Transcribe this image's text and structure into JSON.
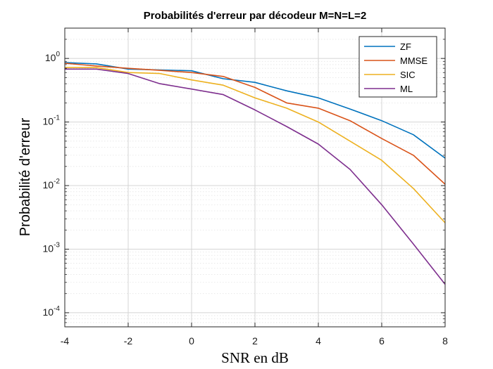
{
  "chart_data": {
    "type": "line",
    "title": "Probabilités d'erreur par décodeur M=N=L=2",
    "xlabel": "SNR en dB",
    "ylabel": "Probabilité d'erreur",
    "xlim": [
      -4,
      8
    ],
    "ylim": [
      6e-05,
      3
    ],
    "yscale": "log",
    "grid": true,
    "legend_position": "top-right",
    "x": [
      -4,
      -3,
      -2,
      -1,
      0,
      1,
      2,
      3,
      4,
      5,
      6,
      7,
      8
    ],
    "x_ticks": [
      {
        "value": -4,
        "label": "-4"
      },
      {
        "value": -2,
        "label": "-2"
      },
      {
        "value": 0,
        "label": "0"
      },
      {
        "value": 2,
        "label": "2"
      },
      {
        "value": 4,
        "label": "4"
      },
      {
        "value": 6,
        "label": "6"
      },
      {
        "value": 8,
        "label": "8"
      }
    ],
    "y_ticks": [
      {
        "value": 1,
        "base": "10",
        "exp": "0"
      },
      {
        "value": 0.1,
        "base": "10",
        "exp": "-1"
      },
      {
        "value": 0.01,
        "base": "10",
        "exp": "-2"
      },
      {
        "value": 0.001,
        "base": "10",
        "exp": "-3"
      },
      {
        "value": 0.0001,
        "base": "10",
        "exp": "-4"
      }
    ],
    "series": [
      {
        "name": "ZF",
        "color": "#0072BD",
        "values": [
          0.86,
          0.82,
          0.68,
          0.66,
          0.64,
          0.48,
          0.42,
          0.31,
          0.24,
          0.16,
          0.105,
          0.063,
          0.027
        ]
      },
      {
        "name": "MMSE",
        "color": "#D95319",
        "values": [
          0.84,
          0.76,
          0.7,
          0.65,
          0.6,
          0.52,
          0.35,
          0.2,
          0.165,
          0.105,
          0.055,
          0.03,
          0.0105
        ]
      },
      {
        "name": "SIC",
        "color": "#EDB120",
        "values": [
          0.72,
          0.72,
          0.6,
          0.58,
          0.46,
          0.38,
          0.24,
          0.165,
          0.1,
          0.05,
          0.025,
          0.009,
          0.0026
        ]
      },
      {
        "name": "ML",
        "color": "#7E2F8E",
        "values": [
          0.68,
          0.68,
          0.58,
          0.4,
          0.33,
          0.27,
          0.155,
          0.085,
          0.045,
          0.018,
          0.005,
          0.0012,
          0.00028
        ]
      }
    ]
  }
}
